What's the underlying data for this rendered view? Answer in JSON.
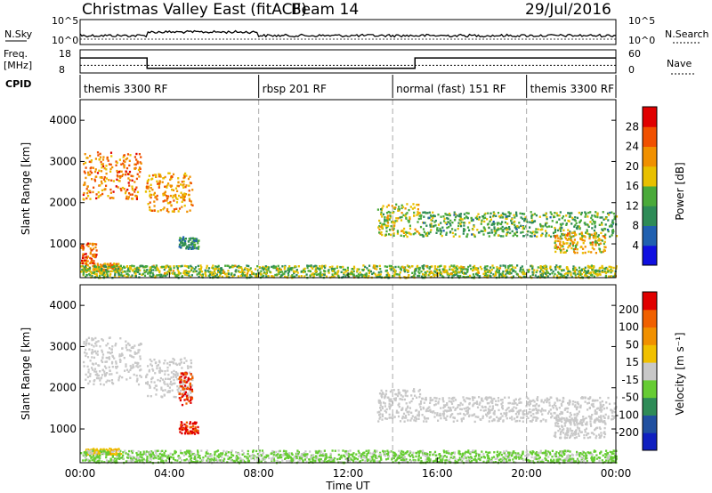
{
  "header": {
    "title": "Christmas Valley East (fitACF)",
    "beam": "Beam 14",
    "date": "29/Jul/2016"
  },
  "param_panels": {
    "nsky": {
      "label": "N.Sky",
      "ticks": [
        "10^5",
        "10^0"
      ]
    },
    "nsearch": {
      "label": "N.Search",
      "ticks": [
        "10^5",
        "10^0"
      ]
    },
    "freq": {
      "label_line1": "Freq.",
      "label_line2": "[MHz]",
      "ticks": [
        "18",
        "8"
      ]
    },
    "nave": {
      "label": "Nave",
      "ticks": [
        "60",
        "0"
      ]
    },
    "cpid": {
      "label": "CPID"
    }
  },
  "cpid_segments": [
    {
      "label": "themis 3300 RF",
      "start": "00:00",
      "end": "08:00"
    },
    {
      "label": "rbsp 201 RF",
      "start": "08:00",
      "end": "14:00"
    },
    {
      "label": "normal (fast) 151 RF",
      "start": "14:00",
      "end": "20:00"
    },
    {
      "label": "themis 3300 RF",
      "start": "20:00",
      "end": "00:00"
    }
  ],
  "x_axis": {
    "label": "Time UT",
    "ticks": [
      "00:00",
      "04:00",
      "08:00",
      "12:00",
      "16:00",
      "20:00",
      "00:00"
    ],
    "range_hours": [
      0,
      24
    ]
  },
  "chart_data": [
    {
      "type": "heatmap",
      "title": "",
      "xlabel": "Time UT",
      "ylabel": "Slant Range [km]",
      "ylim": [
        180,
        4500
      ],
      "yticks": [
        "1000",
        "2000",
        "3000",
        "4000"
      ],
      "colorbar": {
        "label": "Power [dB]",
        "ticks": [
          "4",
          "8",
          "12",
          "16",
          "20",
          "24",
          "28"
        ],
        "range": [
          0,
          30
        ]
      },
      "grid": "dashed vertical lines at 08:00, 14:00, 20:00",
      "echo_regions": [
        {
          "t": [
            0.1,
            2.7
          ],
          "range": [
            2100,
            3250
          ],
          "value": 22
        },
        {
          "t": [
            2.9,
            5.0
          ],
          "range": [
            1800,
            2750
          ],
          "value": 20
        },
        {
          "t": [
            0.0,
            0.7
          ],
          "range": [
            550,
            1050
          ],
          "value": 24
        },
        {
          "t": [
            0.1,
            1.8
          ],
          "range": [
            350,
            550
          ],
          "value": 20
        },
        {
          "t": [
            0.0,
            24.0
          ],
          "range": [
            200,
            500
          ],
          "value": 14
        },
        {
          "t": [
            13.3,
            15.2
          ],
          "range": [
            1200,
            2000
          ],
          "value": 16
        },
        {
          "t": [
            15.2,
            24.0
          ],
          "range": [
            1200,
            1800
          ],
          "value": 12
        },
        {
          "t": [
            21.2,
            23.5
          ],
          "range": [
            800,
            1300
          ],
          "value": 18
        },
        {
          "t": [
            4.4,
            5.3
          ],
          "range": [
            900,
            1200
          ],
          "value": 10
        }
      ]
    },
    {
      "type": "heatmap",
      "title": "",
      "xlabel": "Time UT",
      "ylabel": "Slant Range [km]",
      "ylim": [
        180,
        4500
      ],
      "yticks": [
        "1000",
        "2000",
        "3000",
        "4000"
      ],
      "colorbar": {
        "label": "Velocity [m s⁻¹]",
        "ticks": [
          "200",
          "100",
          "50",
          "15",
          "-15",
          "-50",
          "-100",
          "-200"
        ],
        "range": [
          -250,
          250
        ]
      },
      "grid": "dashed vertical lines at 08:00, 14:00, 20:00",
      "echo_regions": [
        {
          "t": [
            0.1,
            2.7
          ],
          "range": [
            2100,
            3250
          ],
          "value": 0
        },
        {
          "t": [
            2.9,
            5.0
          ],
          "range": [
            1800,
            2750
          ],
          "value": 0
        },
        {
          "t": [
            4.4,
            5.0
          ],
          "range": [
            1600,
            2400
          ],
          "value": 200
        },
        {
          "t": [
            4.4,
            5.3
          ],
          "range": [
            900,
            1200
          ],
          "value": 200
        },
        {
          "t": [
            0.2,
            1.8
          ],
          "range": [
            400,
            550
          ],
          "value": 60
        },
        {
          "t": [
            0.0,
            24.0
          ],
          "range": [
            200,
            500
          ],
          "value": -40
        },
        {
          "t": [
            13.3,
            15.2
          ],
          "range": [
            1200,
            2000
          ],
          "value": 0
        },
        {
          "t": [
            15.2,
            24.0
          ],
          "range": [
            1200,
            1800
          ],
          "value": 0
        },
        {
          "t": [
            21.2,
            23.5
          ],
          "range": [
            800,
            1300
          ],
          "value": 0
        }
      ]
    }
  ],
  "colors": {
    "power_scale": [
      "#1010e0",
      "#2060b0",
      "#2e8b57",
      "#4aaa3a",
      "#e8c000",
      "#f09000",
      "#f05000",
      "#e00000"
    ],
    "velocity_scale": [
      "#1020c0",
      "#2050a0",
      "#2e8b57",
      "#66cc33",
      "#c8c8c8",
      "#f0c000",
      "#f09000",
      "#f06000",
      "#e00000"
    ]
  }
}
